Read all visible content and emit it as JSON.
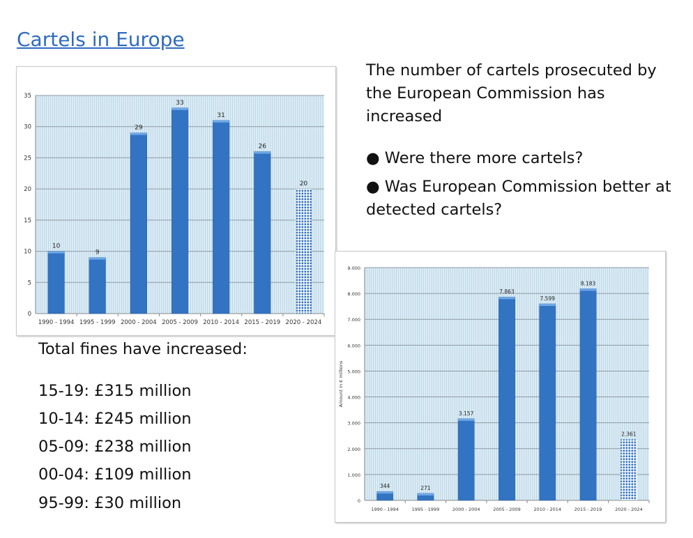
{
  "slide": {
    "title": "Cartels in Europe",
    "intro": "The number of cartels prosecuted by the European Commission has increased",
    "bullets": [
      "● Were there more cartels?",
      "● Was European Commission better at detected cartels?"
    ],
    "fines_heading": "Total fines have increased:",
    "fines": [
      "15-19: £315 million",
      "10-14: £245 million",
      "05-09: £238 million",
      "00-04: £109 million",
      "95-99: £30 million"
    ]
  },
  "colors": {
    "bar": "#3273c2",
    "bar_top": "#6fa8e6",
    "plot_bg": "#dcecf5",
    "title": "#2f6bbf"
  },
  "chart_data": [
    {
      "type": "bar",
      "title": "",
      "xlabel": "",
      "ylabel": "",
      "categories": [
        "1990 - 1994",
        "1995 - 1999",
        "2000 - 2004",
        "2005 - 2009",
        "2010 - 2014",
        "2015 - 2019",
        "2020 - 2024"
      ],
      "values": [
        10,
        9,
        29,
        33,
        31,
        26,
        20
      ],
      "value_labels": [
        "10",
        "9",
        "29",
        "33",
        "31",
        "26",
        "20"
      ],
      "patterned_last_bar": true,
      "ylim": [
        0,
        35
      ],
      "yticks": [
        0,
        5,
        10,
        15,
        20,
        25,
        30,
        35
      ],
      "ytick_labels": [
        "0",
        "5",
        "10",
        "15",
        "20",
        "25",
        "30",
        "35"
      ],
      "grid": true
    },
    {
      "type": "bar",
      "title": "",
      "xlabel": "",
      "ylabel": "Amount in € millions",
      "categories": [
        "1990 - 1994",
        "1995 - 1999",
        "2000 - 2004",
        "2005 - 2009",
        "2010 - 2014",
        "2015 - 2019",
        "2020 - 2024"
      ],
      "values": [
        344,
        271,
        3157,
        7863,
        7599,
        8183,
        2361
      ],
      "value_labels": [
        "344",
        "271",
        "3.157",
        "7.863",
        "7.599",
        "8.183",
        "2.361"
      ],
      "patterned_last_bar": true,
      "ylim": [
        0,
        9000
      ],
      "yticks": [
        0,
        1000,
        2000,
        3000,
        4000,
        5000,
        6000,
        7000,
        8000,
        9000
      ],
      "ytick_labels": [
        "0",
        "1.000",
        "2.000",
        "3.000",
        "4.000",
        "5.000",
        "6.000",
        "7.000",
        "8.000",
        "9.000"
      ],
      "grid": true
    }
  ]
}
